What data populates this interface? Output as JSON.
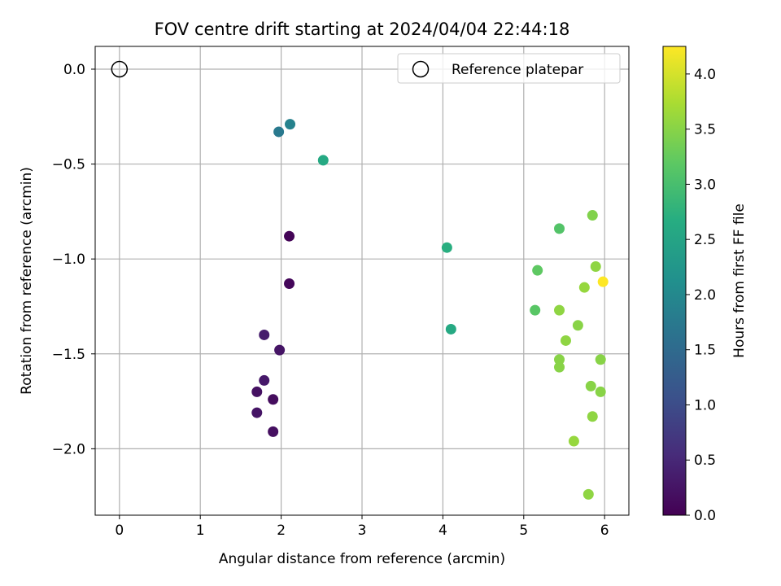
{
  "chart_data": {
    "type": "scatter",
    "title": "FOV centre drift starting at 2024/04/04 22:44:18",
    "xlabel": "Angular distance from reference (arcmin)",
    "ylabel": "Rotation from reference (arcmin)",
    "xlim": [
      -0.3,
      6.3
    ],
    "ylim": [
      -2.35,
      0.12
    ],
    "x_ticks": [
      0,
      1,
      2,
      3,
      4,
      5,
      6
    ],
    "x_tick_labels": [
      "0",
      "1",
      "2",
      "3",
      "4",
      "5",
      "6"
    ],
    "y_ticks": [
      0.0,
      -0.5,
      -1.0,
      -1.5,
      -2.0
    ],
    "y_tick_labels": [
      "0.0",
      "−0.5",
      "−1.0",
      "−1.5",
      "−2.0"
    ],
    "grid": true,
    "legend": {
      "placement": "top-right",
      "entries": [
        {
          "label": "Reference platepar",
          "marker": "open-circle"
        }
      ]
    },
    "reference_point": {
      "x": 0,
      "y": 0
    },
    "colorbar": {
      "label": "Hours from first FF file",
      "colormap": "viridis",
      "range": [
        0.0,
        4.25
      ],
      "ticks": [
        0.0,
        0.5,
        1.0,
        1.5,
        2.0,
        2.5,
        3.0,
        3.5,
        4.0
      ],
      "tick_labels": [
        "0.0",
        "0.5",
        "1.0",
        "1.5",
        "2.0",
        "2.5",
        "3.0",
        "3.5",
        "4.0"
      ]
    },
    "points": [
      {
        "x": 2.1,
        "y": -0.88,
        "c": 0.05
      },
      {
        "x": 2.1,
        "y": -1.13,
        "c": 0.08
      },
      {
        "x": 1.79,
        "y": -1.4,
        "c": 0.35
      },
      {
        "x": 1.98,
        "y": -1.48,
        "c": 0.25
      },
      {
        "x": 1.79,
        "y": -1.64,
        "c": 0.3
      },
      {
        "x": 1.7,
        "y": -1.7,
        "c": 0.2
      },
      {
        "x": 1.9,
        "y": -1.74,
        "c": 0.15
      },
      {
        "x": 1.7,
        "y": -1.81,
        "c": 0.25
      },
      {
        "x": 1.9,
        "y": -1.91,
        "c": 0.18
      },
      {
        "x": 1.97,
        "y": -0.33,
        "c": 1.75
      },
      {
        "x": 2.11,
        "y": -0.29,
        "c": 1.9
      },
      {
        "x": 2.52,
        "y": -0.48,
        "c": 2.6
      },
      {
        "x": 4.05,
        "y": -0.94,
        "c": 2.7
      },
      {
        "x": 4.1,
        "y": -1.37,
        "c": 2.6
      },
      {
        "x": 5.44,
        "y": -0.84,
        "c": 3.1
      },
      {
        "x": 5.85,
        "y": -0.77,
        "c": 3.45
      },
      {
        "x": 5.17,
        "y": -1.06,
        "c": 3.2
      },
      {
        "x": 5.89,
        "y": -1.04,
        "c": 3.55
      },
      {
        "x": 5.75,
        "y": -1.15,
        "c": 3.6
      },
      {
        "x": 5.98,
        "y": -1.12,
        "c": 4.25
      },
      {
        "x": 5.14,
        "y": -1.27,
        "c": 3.15
      },
      {
        "x": 5.44,
        "y": -1.27,
        "c": 3.55
      },
      {
        "x": 5.67,
        "y": -1.35,
        "c": 3.5
      },
      {
        "x": 5.52,
        "y": -1.43,
        "c": 3.55
      },
      {
        "x": 5.44,
        "y": -1.53,
        "c": 3.5
      },
      {
        "x": 5.44,
        "y": -1.57,
        "c": 3.5
      },
      {
        "x": 5.95,
        "y": -1.53,
        "c": 3.5
      },
      {
        "x": 5.83,
        "y": -1.67,
        "c": 3.5
      },
      {
        "x": 5.95,
        "y": -1.7,
        "c": 3.5
      },
      {
        "x": 5.85,
        "y": -1.83,
        "c": 3.55
      },
      {
        "x": 5.62,
        "y": -1.96,
        "c": 3.6
      },
      {
        "x": 5.8,
        "y": -2.24,
        "c": 3.55
      }
    ]
  }
}
